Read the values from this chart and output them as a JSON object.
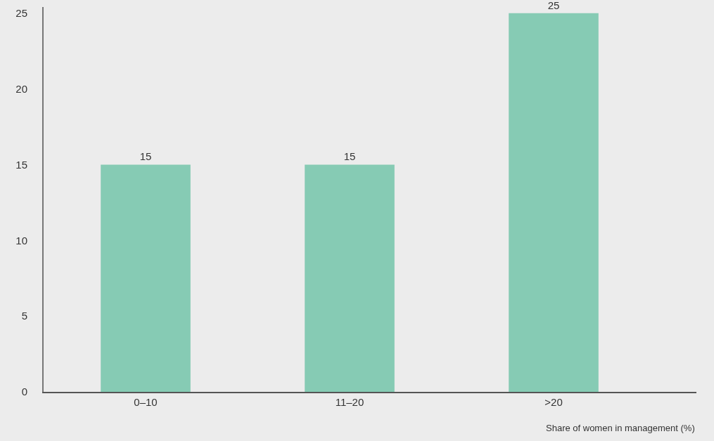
{
  "chart_data": {
    "type": "bar",
    "xlabel": "Share of women in management (%)",
    "categories": [
      "0–10",
      "11–20",
      ">20"
    ],
    "values": [
      15,
      15,
      25
    ],
    "color": "#86cbb4",
    "ylim": [
      0,
      25.4
    ],
    "yticks": [
      0,
      5,
      10,
      15,
      20,
      25
    ],
    "grid": false,
    "data_labels": true
  }
}
